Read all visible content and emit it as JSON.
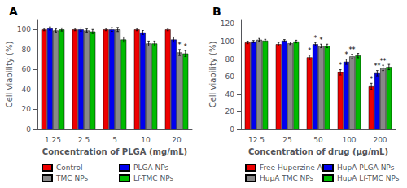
{
  "chart_data": [
    {
      "type": "bar",
      "title": "A",
      "categories": [
        "1.25",
        "2.5",
        "5",
        "10",
        "20"
      ],
      "xlabel": "Concentration of PLGA (mg/mL)",
      "ylabel": "Cell viability (%)",
      "ylim": [
        0,
        110
      ],
      "yticks": [
        0,
        20,
        40,
        60,
        80,
        100
      ],
      "grid": false,
      "legend": "bottom",
      "series": [
        {
          "name": "Control",
          "color": "#ee0000",
          "values": [
            100,
            100,
            100,
            100,
            100
          ],
          "errors": [
            1.2,
            1.2,
            1.2,
            1.2,
            1.2
          ]
        },
        {
          "name": "PLGA NPs",
          "color": "#0000ee",
          "values": [
            101,
            100,
            100,
            97,
            90
          ],
          "errors": [
            1.5,
            1.5,
            1.8,
            2.0,
            2.5
          ]
        },
        {
          "name": "TMC NPs",
          "color": "#888888",
          "values": [
            99,
            99,
            100,
            86,
            77
          ],
          "errors": [
            1.5,
            1.5,
            2.0,
            2.5,
            3.0
          ],
          "annotations": [
            null,
            null,
            null,
            null,
            "*"
          ]
        },
        {
          "name": "Lf-TMC NPs",
          "color": "#00bb00",
          "values": [
            100,
            98,
            90,
            86,
            76
          ],
          "errors": [
            1.5,
            2.0,
            2.5,
            2.5,
            3.0
          ],
          "annotations": [
            null,
            null,
            null,
            null,
            "*"
          ]
        }
      ]
    },
    {
      "type": "bar",
      "title": "B",
      "categories": [
        "12.5",
        "25",
        "50",
        "100",
        "200"
      ],
      "xlabel": "Concentration of drug (μg/mL)",
      "ylabel": "Cell viability (%)",
      "ylim": [
        0,
        125
      ],
      "yticks": [
        0,
        20,
        40,
        60,
        80,
        100,
        120
      ],
      "grid": false,
      "legend": "bottom",
      "series": [
        {
          "name": "Free Huperzine A",
          "color": "#ee0000",
          "values": [
            99,
            97,
            82,
            65,
            49
          ],
          "errors": [
            1.5,
            2.0,
            2.5,
            3.0,
            3.5
          ],
          "annotations": [
            null,
            null,
            "*",
            "*",
            "*"
          ]
        },
        {
          "name": "HupA PLGA NPs",
          "color": "#0000ee",
          "values": [
            100,
            101,
            97,
            77,
            64
          ],
          "errors": [
            1.2,
            1.2,
            2.0,
            3.0,
            3.0
          ],
          "annotations": [
            null,
            null,
            "*",
            "*",
            "**"
          ]
        },
        {
          "name": "HupA TMC NPs",
          "color": "#888888",
          "values": [
            102,
            98,
            95,
            83,
            70
          ],
          "errors": [
            1.5,
            1.5,
            2.0,
            2.5,
            3.0
          ],
          "annotations": [
            null,
            null,
            "*",
            "**",
            "**"
          ]
        },
        {
          "name": "HupA Lf-TMC NPs",
          "color": "#00bb00",
          "values": [
            101,
            100,
            95,
            84,
            71
          ],
          "errors": [
            1.5,
            1.5,
            2.0,
            2.5,
            3.0
          ]
        }
      ]
    }
  ]
}
